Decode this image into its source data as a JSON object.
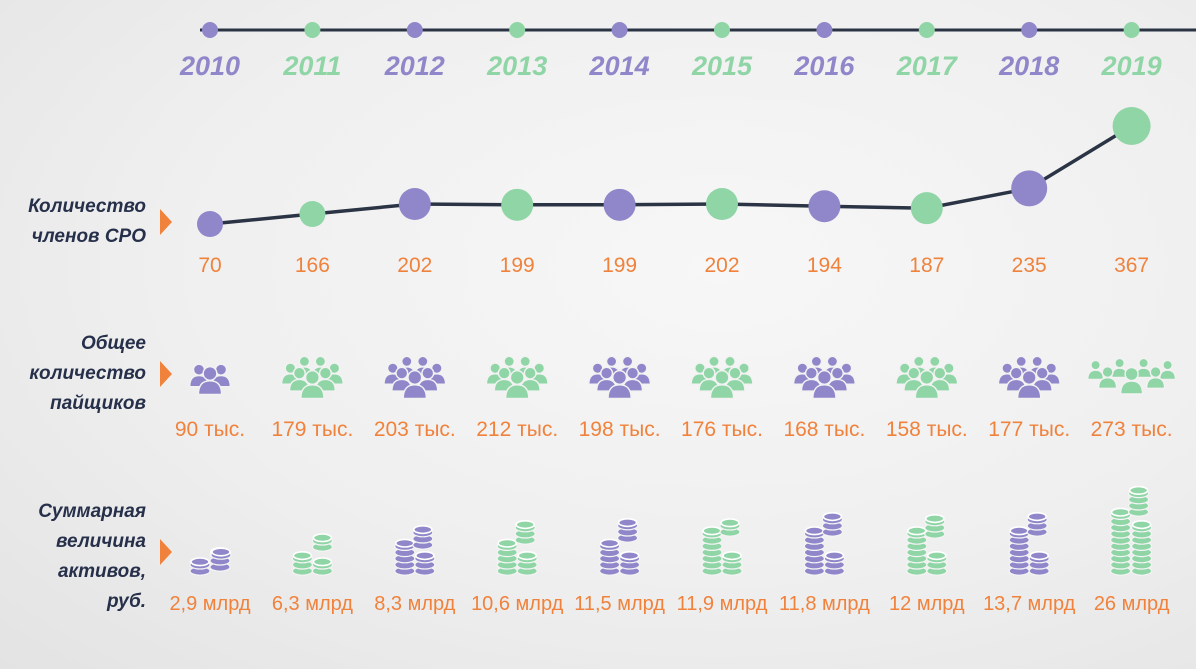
{
  "colors": {
    "purple": "#8f87c9",
    "green": "#8fd5a6",
    "line": "#2b3445",
    "value": "#f0823c",
    "label": "#27304a",
    "arrow": "#f0823c"
  },
  "labels": {
    "members": [
      "Количество",
      "членов СРО"
    ],
    "shareholders": [
      "Общее",
      "количество",
      "пайщиков"
    ],
    "assets": [
      "Суммарная",
      "величина",
      "активов,",
      "руб."
    ]
  },
  "icons": {
    "shareholders": "people-group-icon",
    "assets": "coin-stack-icon"
  },
  "chart_data": {
    "type": "line",
    "x": [
      "2010",
      "2011",
      "2012",
      "2013",
      "2014",
      "2015",
      "2016",
      "2017",
      "2018",
      "2019"
    ],
    "series": [
      {
        "values": [
          70,
          166,
          202,
          199,
          199,
          202,
          194,
          187,
          235,
          367
        ]
      }
    ],
    "shareholders_labels": [
      "90 тыс.",
      "179 тыс.",
      "203 тыс.",
      "212 тыс.",
      "198 тыс.",
      "176 тыс.",
      "168 тыс.",
      "158 тыс.",
      "177 тыс.",
      "273 тыс."
    ],
    "assets_labels": [
      "2,9 млрд",
      "6,3 млрд",
      "8,3 млрд",
      "10,6 млрд",
      "11,5 млрд",
      "11,9 млрд",
      "11,8 млрд",
      "12 млрд",
      "13,7 млрд",
      "26 млрд"
    ],
    "point_sizes": [
      "small",
      "small",
      "large",
      "large",
      "large",
      "large",
      "large",
      "large",
      "large",
      "large"
    ],
    "series_colors": [
      "purple",
      "green",
      "purple",
      "green",
      "purple",
      "green",
      "purple",
      "green",
      "purple",
      "green"
    ]
  }
}
